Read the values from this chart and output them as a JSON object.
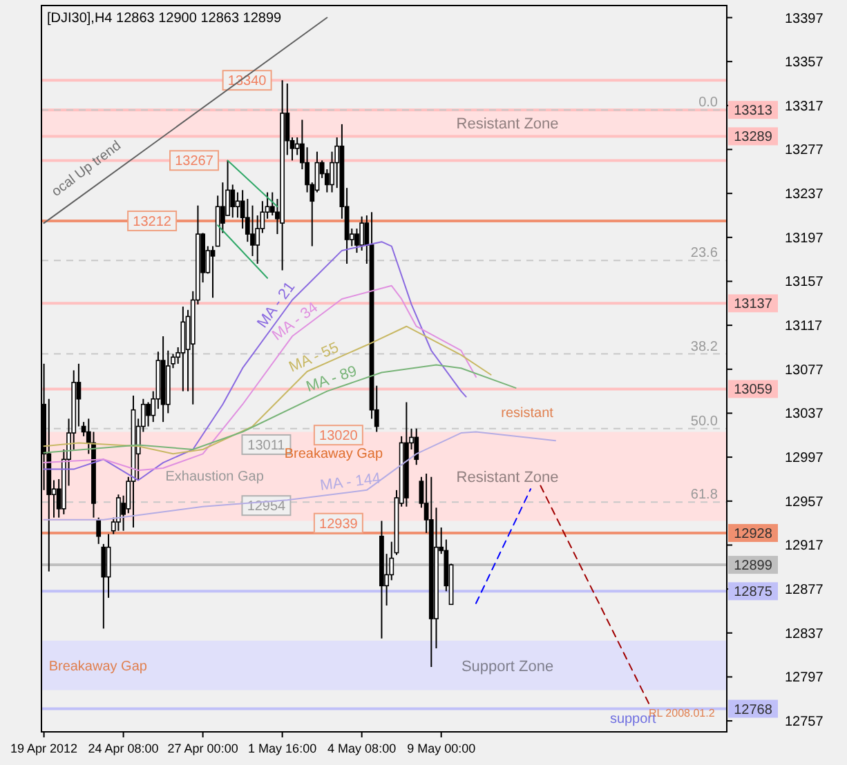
{
  "chart_data": {
    "type": "candlestick",
    "title": "[DJI30],H4  12863 12900 12863 12899",
    "color": "#000000",
    "categories": [
      "19 Apr 2012",
      null,
      null,
      null,
      null,
      null,
      null,
      null,
      null,
      null,
      null,
      null,
      null,
      null,
      null,
      null,
      "24 Apr 08:00",
      null,
      null,
      null,
      null,
      null,
      null,
      null,
      null,
      null,
      null,
      null,
      null,
      null,
      null,
      null,
      "27 Apr 00:00",
      null,
      null,
      null,
      null,
      null,
      null,
      null,
      null,
      null,
      null,
      null,
      null,
      null,
      null,
      null,
      "1 May 16:00",
      null,
      null,
      null,
      null,
      null,
      null,
      null,
      null,
      null,
      null,
      null,
      null,
      null,
      null,
      null,
      "4 May 08:00",
      null,
      null,
      null,
      null,
      null,
      null,
      null,
      null,
      null,
      null,
      null,
      null,
      null,
      null,
      null,
      "9 May 00:00",
      null,
      null,
      null,
      null,
      null,
      null,
      null,
      null,
      null,
      null,
      null,
      null,
      null,
      null,
      null,
      null,
      null,
      null,
      null,
      null,
      null,
      null,
      null,
      null,
      null,
      null,
      null,
      null,
      null,
      null,
      null,
      null,
      null,
      null,
      null,
      null,
      null,
      null,
      null,
      null,
      null,
      null,
      null,
      null,
      null,
      null,
      null,
      null,
      null,
      null,
      null,
      null,
      null,
      null,
      null,
      null,
      null
    ],
    "ohlc": [
      [
        13045,
        13082,
        12967,
        13000
      ],
      [
        13000,
        13050,
        12893,
        12963
      ],
      [
        12963,
        12976,
        12942,
        12968
      ],
      [
        12968,
        12977,
        12942,
        12950
      ],
      [
        12950,
        13004,
        12945,
        12995
      ],
      [
        12995,
        13032,
        12971,
        13019
      ],
      [
        13019,
        13076,
        13004,
        13065
      ],
      [
        13065,
        13082,
        13025,
        13050
      ],
      [
        13025,
        13029,
        13016,
        13020
      ],
      [
        13020,
        13032,
        13000,
        13010
      ],
      [
        13010,
        13020,
        12942,
        12955
      ],
      [
        12940,
        12942,
        12918,
        12925
      ],
      [
        12915,
        12918,
        12841,
        12888
      ],
      [
        12888,
        12927,
        12869,
        12915
      ],
      [
        12930,
        12942,
        12927,
        12938
      ],
      [
        12938,
        12963,
        12930,
        12960
      ],
      [
        12955,
        12962,
        12930,
        12945
      ],
      [
        12950,
        12979,
        12946,
        12975
      ],
      [
        12975,
        13053,
        12933,
        13040
      ],
      [
        13000,
        13032,
        12976,
        13025
      ],
      [
        13025,
        13050,
        13020,
        13045
      ],
      [
        13045,
        13047,
        13025,
        13035
      ],
      [
        13035,
        13057,
        13029,
        13050
      ],
      [
        13050,
        13093,
        13041,
        13085
      ],
      [
        13085,
        13107,
        13029,
        13045
      ],
      [
        13045,
        13094,
        13037,
        13080
      ],
      [
        13082,
        13091,
        13078,
        13088
      ],
      [
        13088,
        13097,
        13082,
        13092
      ],
      [
        13092,
        13134,
        13057,
        13120
      ],
      [
        13095,
        13131,
        13057,
        13125
      ],
      [
        13100,
        13148,
        13045,
        13140
      ],
      [
        13140,
        13226,
        13136,
        13200
      ],
      [
        13200,
        13201,
        13156,
        13165
      ],
      [
        13165,
        13189,
        13164,
        13185
      ],
      [
        13185,
        13189,
        13142,
        13180
      ],
      [
        13189,
        13235,
        13189,
        13225
      ],
      [
        13225,
        13247,
        13201,
        13210
      ],
      [
        13217,
        13267,
        13217,
        13240
      ],
      [
        13240,
        13245,
        13215,
        13225
      ],
      [
        13225,
        13238,
        13215,
        13230
      ],
      [
        13230,
        13240,
        13205,
        13215
      ],
      [
        13215,
        13232,
        13193,
        13200
      ],
      [
        13200,
        13226,
        13180,
        13190
      ],
      [
        13190,
        13217,
        13173,
        13205
      ],
      [
        13205,
        13230,
        13201,
        13220
      ],
      [
        13220,
        13238,
        13214,
        13225
      ],
      [
        13225,
        13238,
        13217,
        13220
      ],
      [
        13220,
        13232,
        13200,
        13214
      ],
      [
        13210,
        13340,
        13167,
        13310
      ],
      [
        13310,
        13337,
        13272,
        13285
      ],
      [
        13285,
        13288,
        13267,
        13278
      ],
      [
        13278,
        13288,
        13272,
        13282
      ],
      [
        13282,
        13304,
        13259,
        13265
      ],
      [
        13265,
        13279,
        13238,
        13245
      ],
      [
        13245,
        13247,
        13189,
        13230
      ],
      [
        13240,
        13275,
        13238,
        13265
      ],
      [
        13265,
        13267,
        13251,
        13255
      ],
      [
        13255,
        13259,
        13238,
        13245
      ],
      [
        13245,
        13275,
        13238,
        13265
      ],
      [
        13265,
        13288,
        13242,
        13280
      ],
      [
        13280,
        13300,
        13214,
        13225
      ],
      [
        13225,
        13242,
        13173,
        13195
      ],
      [
        13195,
        13205,
        13189,
        13200
      ],
      [
        13200,
        13205,
        13183,
        13190
      ],
      [
        13190,
        13216,
        13185,
        13210
      ],
      [
        13210,
        13217,
        13173,
        13190
      ],
      [
        13190,
        13220,
        13032,
        13040
      ],
      [
        13040,
        13062,
        13020,
        13025
      ],
      [
        12925,
        12939,
        12832,
        12880
      ],
      [
        12880,
        12909,
        12862,
        12890
      ],
      [
        12890,
        12920,
        12885,
        12905
      ],
      [
        12910,
        12967,
        12908,
        12960
      ],
      [
        12955,
        13016,
        12952,
        13010
      ],
      [
        13010,
        13047,
        12952,
        12960
      ],
      [
        13010,
        13023,
        13004,
        13015
      ],
      [
        13015,
        13023,
        12990,
        12995
      ],
      [
        12975,
        12979,
        12951,
        12955
      ],
      [
        12955,
        12982,
        12928,
        12940
      ],
      [
        12940,
        12979,
        12806,
        12850
      ],
      [
        12850,
        12951,
        12823,
        12915
      ],
      [
        12915,
        12933,
        12909,
        12912
      ],
      [
        12912,
        12922,
        12875,
        12880
      ],
      [
        12863,
        12900,
        12863,
        12899
      ],
      null,
      null,
      null,
      null,
      null,
      null,
      null,
      null,
      null,
      null,
      null,
      null,
      null,
      null,
      null,
      null,
      null,
      null,
      null,
      null,
      null,
      null,
      null,
      null,
      null,
      null,
      null,
      null,
      null,
      null,
      null,
      null,
      null,
      null,
      null,
      null,
      null,
      null,
      null,
      null,
      null,
      null,
      null,
      null,
      null,
      null,
      null,
      null,
      null,
      null,
      null,
      null,
      null,
      null,
      null
    ],
    "series": [
      {
        "type": "line",
        "name": "MA - 21",
        "color": "#8a6ae0",
        "values": [
          12986,
          null,
          null,
          null,
          null,
          null,
          12986,
          null,
          null,
          null,
          null,
          null,
          12995,
          null,
          null,
          null,
          null,
          null,
          null,
          12976,
          null,
          null,
          null,
          null,
          12992,
          null,
          null,
          null,
          null,
          null,
          13004,
          null,
          null,
          null,
          null,
          null,
          13045,
          null,
          null,
          null,
          13078,
          null,
          null,
          null,
          null,
          null,
          null,
          null,
          null,
          null,
          13140,
          null,
          null,
          null,
          null,
          null,
          null,
          null,
          null,
          null,
          13185,
          null,
          null,
          null,
          null,
          null,
          null,
          null,
          13193,
          null,
          13189,
          null,
          null,
          null,
          13136,
          null,
          null,
          null,
          13094,
          null,
          null,
          null,
          null,
          null,
          13057,
          13052,
          null,
          null,
          null,
          null,
          null,
          null,
          null,
          null,
          null,
          null,
          null,
          null,
          null,
          null,
          null,
          null,
          null,
          null,
          null,
          null,
          null,
          null,
          null,
          null,
          null,
          null,
          null,
          null,
          null,
          null,
          null,
          null,
          null,
          null,
          null,
          null,
          null,
          null,
          null,
          null,
          null,
          null,
          null,
          null,
          null,
          null,
          null,
          null,
          null,
          null,
          null,
          null
        ]
      },
      {
        "type": "line",
        "name": "MA - 34",
        "color": "#e090e0",
        "values": [
          12992,
          null,
          null,
          null,
          null,
          null,
          null,
          null,
          null,
          null,
          null,
          null,
          12995,
          null,
          null,
          null,
          null,
          null,
          null,
          12985,
          null,
          null,
          null,
          null,
          12987,
          null,
          null,
          null,
          null,
          null,
          null,
          null,
          13000,
          null,
          null,
          null,
          null,
          null,
          null,
          null,
          13045,
          null,
          null,
          null,
          null,
          null,
          null,
          null,
          null,
          null,
          13107,
          null,
          null,
          null,
          null,
          null,
          null,
          null,
          null,
          null,
          13141,
          null,
          null,
          null,
          null,
          null,
          null,
          null,
          null,
          null,
          13153,
          null,
          13141,
          null,
          null,
          13116,
          null,
          null,
          null,
          null,
          null,
          null,
          null,
          null,
          13094,
          null,
          null,
          13070,
          null,
          null,
          null,
          null,
          null,
          null,
          null,
          null,
          null,
          null,
          null,
          null,
          null,
          null,
          null,
          null,
          null,
          null,
          null,
          null,
          null,
          null,
          null,
          null,
          null,
          null,
          null,
          null,
          null,
          null,
          null,
          null,
          null,
          null,
          null,
          null,
          null,
          null,
          null,
          null,
          null,
          null,
          null,
          null,
          null,
          null,
          null,
          null,
          null,
          null
        ]
      },
      {
        "type": "line",
        "name": "MA - 55",
        "color": "#c8b864",
        "values": [
          13007,
          null,
          null,
          null,
          null,
          null,
          null,
          13010,
          null,
          null,
          null,
          null,
          null,
          null,
          null,
          null,
          null,
          null,
          null,
          13007,
          null,
          null,
          null,
          null,
          null,
          null,
          13000,
          null,
          null,
          null,
          null,
          null,
          13004,
          null,
          null,
          null,
          null,
          null,
          null,
          null,
          null,
          null,
          13025,
          null,
          null,
          null,
          null,
          null,
          null,
          null,
          null,
          null,
          null,
          13075,
          null,
          null,
          null,
          null,
          null,
          null,
          null,
          null,
          null,
          null,
          null,
          13099,
          null,
          null,
          null,
          null,
          null,
          null,
          null,
          13116,
          null,
          null,
          null,
          null,
          null,
          null,
          null,
          null,
          null,
          null,
          13090,
          null,
          null,
          null,
          null,
          null,
          13072,
          null,
          null,
          null,
          null,
          null,
          null,
          null,
          null,
          null,
          null,
          null,
          null,
          null,
          null,
          null,
          null,
          null,
          null,
          null,
          null,
          null,
          null,
          null,
          null,
          null,
          null,
          null,
          null,
          null,
          null,
          null,
          null,
          null,
          null,
          null,
          null,
          null,
          null,
          null,
          null,
          null,
          null,
          null,
          null,
          null,
          null,
          null
        ]
      },
      {
        "type": "line",
        "name": "MA - 89",
        "color": "#78b478",
        "values": [
          13001,
          null,
          null,
          null,
          null,
          null,
          null,
          null,
          null,
          null,
          null,
          null,
          null,
          null,
          null,
          null,
          null,
          null,
          null,
          13008,
          null,
          null,
          null,
          null,
          null,
          null,
          null,
          null,
          null,
          null,
          13004,
          null,
          null,
          null,
          null,
          null,
          null,
          null,
          null,
          null,
          13020,
          null,
          null,
          null,
          null,
          null,
          null,
          null,
          null,
          null,
          null,
          null,
          null,
          null,
          null,
          null,
          null,
          13057,
          null,
          null,
          null,
          null,
          null,
          null,
          null,
          null,
          null,
          null,
          13074,
          null,
          null,
          null,
          null,
          null,
          null,
          null,
          null,
          null,
          null,
          13081,
          null,
          null,
          null,
          null,
          13078,
          null,
          null,
          null,
          null,
          null,
          null,
          null,
          null,
          null,
          null,
          13060,
          null,
          null,
          null,
          null,
          null,
          null,
          null,
          null,
          null,
          null,
          null,
          null,
          null,
          null,
          null,
          null,
          null,
          null,
          null,
          null,
          null,
          null,
          null,
          null,
          null,
          null,
          null,
          null,
          null,
          null,
          null,
          null,
          null,
          null,
          null,
          null,
          null,
          null,
          null,
          null,
          null,
          null
        ]
      },
      {
        "type": "line",
        "name": "MA - 144",
        "color": "#b4ace4",
        "values": [
          12940,
          null,
          null,
          null,
          null,
          null,
          null,
          null,
          null,
          null,
          null,
          null,
          12940,
          null,
          null,
          null,
          null,
          null,
          null,
          null,
          null,
          null,
          null,
          null,
          null,
          null,
          null,
          null,
          null,
          null,
          null,
          null,
          12952,
          null,
          null,
          null,
          null,
          null,
          null,
          null,
          null,
          null,
          null,
          null,
          null,
          null,
          null,
          null,
          null,
          12958,
          null,
          null,
          null,
          null,
          null,
          null,
          null,
          null,
          null,
          null,
          null,
          null,
          null,
          null,
          null,
          12967,
          null,
          null,
          null,
          null,
          null,
          null,
          null,
          null,
          null,
          13000,
          null,
          null,
          null,
          null,
          null,
          null,
          null,
          null,
          13019,
          null,
          null,
          13020,
          null,
          null,
          null,
          null,
          null,
          null,
          null,
          null,
          null,
          null,
          null,
          null,
          null,
          null,
          null,
          13012,
          null,
          null,
          null,
          null,
          null,
          null,
          null,
          null,
          null,
          null,
          null,
          null,
          null,
          null,
          null,
          null,
          null,
          null,
          null,
          null,
          null,
          null,
          null,
          null,
          null,
          null,
          null,
          null,
          null,
          null,
          null,
          null,
          null,
          null
        ]
      },
      {
        "type": "line",
        "color": "#30a868",
        "values": [
          null,
          null,
          null,
          null,
          null,
          null,
          null,
          null,
          null,
          null,
          null,
          null,
          null,
          null,
          null,
          null,
          null,
          null,
          null,
          null,
          null,
          null,
          null,
          null,
          null,
          null,
          null,
          null,
          null,
          null,
          null,
          null,
          null,
          null,
          null,
          null,
          null,
          13267,
          null,
          null,
          null,
          null,
          null,
          null,
          null,
          null,
          null,
          13225,
          null,
          null,
          null,
          null,
          null,
          null,
          null,
          null,
          null,
          null,
          null,
          null,
          null,
          null,
          null,
          null,
          null,
          null,
          null,
          null,
          null,
          null,
          null,
          null,
          null,
          null,
          null,
          null,
          null,
          null,
          null,
          null,
          null,
          null,
          null,
          null,
          null,
          null,
          null,
          null,
          null,
          null,
          null,
          null,
          null,
          null,
          null,
          null,
          null,
          null,
          null,
          null,
          null,
          null,
          null,
          null,
          null,
          null,
          null,
          null,
          null,
          null,
          null,
          null,
          null,
          null,
          null,
          null,
          null,
          null,
          null,
          null,
          null,
          null,
          null,
          null,
          null,
          null,
          null,
          null,
          null,
          null,
          null,
          null,
          null,
          null,
          null,
          null,
          null,
          null
        ]
      },
      {
        "type": "line",
        "color": "#30a868",
        "values": [
          null,
          null,
          null,
          null,
          null,
          null,
          null,
          null,
          null,
          null,
          null,
          null,
          null,
          null,
          null,
          null,
          null,
          null,
          null,
          null,
          null,
          null,
          null,
          null,
          null,
          null,
          null,
          null,
          null,
          null,
          null,
          null,
          null,
          null,
          null,
          13208,
          null,
          null,
          null,
          null,
          null,
          null,
          null,
          null,
          null,
          13160,
          null,
          null,
          null,
          null,
          null,
          null,
          null,
          null,
          null,
          null,
          null,
          null,
          null,
          null,
          null,
          null,
          null,
          null,
          null,
          null,
          null,
          null,
          null,
          null,
          null,
          null,
          null,
          null,
          null,
          null,
          null,
          null,
          null,
          null,
          null,
          null,
          null,
          null,
          null,
          null,
          null,
          null,
          null,
          null,
          null,
          null,
          null,
          null,
          null,
          null,
          null,
          null,
          null,
          null,
          null,
          null,
          null,
          null,
          null,
          null,
          null,
          null,
          null,
          null,
          null,
          null,
          null,
          null,
          null,
          null,
          null,
          null,
          null,
          null,
          null,
          null,
          null,
          null,
          null,
          null,
          null,
          null,
          null,
          null,
          null,
          null,
          null,
          null,
          null,
          null,
          null,
          null
        ]
      },
      {
        "type": "line",
        "color": "#606060",
        "values": [
          13210,
          null,
          null,
          null,
          null,
          null,
          null,
          null,
          null,
          null,
          null,
          null,
          null,
          null,
          null,
          null,
          null,
          null,
          null,
          null,
          null,
          null,
          null,
          null,
          null,
          null,
          null,
          null,
          null,
          null,
          null,
          null,
          null,
          null,
          null,
          null,
          null,
          null,
          null,
          null,
          null,
          null,
          null,
          null,
          null,
          null,
          null,
          null,
          null,
          null,
          null,
          null,
          null,
          null,
          null,
          null,
          null,
          13397,
          null,
          null,
          null,
          null,
          null,
          null,
          null,
          null,
          null,
          null,
          null,
          null,
          null,
          null,
          null,
          null,
          null,
          null,
          null,
          null,
          null,
          null,
          null,
          null,
          null,
          null,
          null,
          null,
          null,
          null,
          null,
          null,
          null,
          null,
          null,
          null,
          null,
          null,
          null,
          null,
          null,
          null,
          null,
          null,
          null,
          null,
          null,
          null,
          null,
          null,
          null,
          null,
          null,
          null,
          null,
          null,
          null,
          null,
          null,
          null,
          null,
          null,
          null,
          null,
          null,
          null,
          null,
          null,
          null,
          null,
          null,
          null,
          null,
          null,
          null,
          null,
          null,
          null,
          null,
          null
        ]
      },
      {
        "type": "line",
        "color": "#0000ff",
        "line_style": "dashed",
        "values": [
          null,
          null,
          null,
          null,
          null,
          null,
          null,
          null,
          null,
          null,
          null,
          null,
          null,
          null,
          null,
          null,
          null,
          null,
          null,
          null,
          null,
          null,
          null,
          null,
          null,
          null,
          null,
          null,
          null,
          null,
          null,
          null,
          null,
          null,
          null,
          null,
          null,
          null,
          null,
          null,
          null,
          null,
          null,
          null,
          null,
          null,
          null,
          null,
          null,
          null,
          null,
          null,
          null,
          null,
          null,
          null,
          null,
          null,
          null,
          null,
          null,
          null,
          null,
          null,
          null,
          null,
          null,
          null,
          null,
          null,
          null,
          null,
          null,
          null,
          null,
          null,
          null,
          null,
          null,
          null,
          null,
          null,
          null,
          null,
          null,
          null,
          null,
          12864,
          null,
          null,
          null,
          null,
          null,
          null,
          null,
          null,
          null,
          null,
          12968,
          null,
          null,
          null,
          null,
          null,
          null,
          null,
          null,
          null,
          null,
          null,
          null,
          null,
          null,
          null,
          null,
          null,
          null,
          null,
          null,
          null,
          null,
          null,
          null,
          null,
          null,
          null,
          null,
          null,
          null,
          null,
          null,
          null,
          null,
          null,
          null,
          null,
          null,
          null
        ]
      },
      {
        "type": "line",
        "color": "#a00000",
        "line_style": "dashed",
        "values": [
          null,
          null,
          null,
          null,
          null,
          null,
          null,
          null,
          null,
          null,
          null,
          null,
          null,
          null,
          null,
          null,
          null,
          null,
          null,
          null,
          null,
          null,
          null,
          null,
          null,
          null,
          null,
          null,
          null,
          null,
          null,
          null,
          null,
          null,
          null,
          null,
          null,
          null,
          null,
          null,
          null,
          null,
          null,
          null,
          null,
          null,
          null,
          null,
          null,
          null,
          null,
          null,
          null,
          null,
          null,
          null,
          null,
          null,
          null,
          null,
          null,
          null,
          null,
          null,
          null,
          null,
          null,
          null,
          null,
          null,
          null,
          null,
          null,
          null,
          null,
          null,
          null,
          null,
          null,
          null,
          null,
          null,
          null,
          null,
          null,
          null,
          null,
          null,
          null,
          null,
          null,
          null,
          null,
          null,
          null,
          null,
          null,
          null,
          null,
          null,
          12971,
          null,
          null,
          null,
          null,
          null,
          null,
          null,
          null,
          null,
          null,
          null,
          null,
          null,
          null,
          null,
          null,
          null,
          null,
          null,
          null,
          null,
          12771,
          null,
          null,
          null,
          null,
          null,
          null,
          null,
          null,
          null,
          null,
          null,
          null,
          null,
          null,
          null
        ]
      }
    ],
    "ylim": [
      12747,
      13408
    ],
    "yticks": [
      12757,
      12797,
      12837,
      12877,
      12917,
      12957,
      12997,
      13037,
      13077,
      13117,
      13157,
      13197,
      13237,
      13277,
      13317,
      13357,
      13397
    ],
    "bands": [
      {
        "axis": "y",
        "from": 13289,
        "to": 13313,
        "label": "Resistant Zone",
        "color": "#ffe0e0"
      },
      {
        "axis": "y",
        "from": 12939,
        "to": 13020,
        "label": "Resistant Zone",
        "color": "#ffe0e0"
      },
      {
        "axis": "y",
        "from": 12785,
        "to": 12830,
        "label": "Support Zone",
        "color": "#e0e0fa"
      }
    ],
    "ref_lines": [
      {
        "axis": "y",
        "value": 13340,
        "color": "#ffc0c0"
      },
      {
        "axis": "y",
        "value": 13313,
        "label": "13313",
        "color": "#ffc0c0"
      },
      {
        "axis": "y",
        "value": 13289,
        "label": "13289",
        "color": "#ffc0c0"
      },
      {
        "axis": "y",
        "value": 13267,
        "color": "#ffc0c0"
      },
      {
        "axis": "y",
        "value": 13212,
        "color": "#f09070"
      },
      {
        "axis": "y",
        "value": 13137,
        "label": "13137",
        "color": "#ffc0c0"
      },
      {
        "axis": "y",
        "value": 13059,
        "label": "13059",
        "color": "#ffc0c0"
      },
      {
        "axis": "y",
        "value": 12928,
        "label": "12928",
        "color": "#f09070"
      },
      {
        "axis": "y",
        "value": 12899,
        "label": "12899",
        "color": "#c0c0c0"
      },
      {
        "axis": "y",
        "value": 12875,
        "label": "12875",
        "color": "#c0c0f8"
      },
      {
        "axis": "y",
        "value": 12768,
        "label": "12768",
        "color": "#c0c0f8"
      },
      {
        "axis": "y",
        "value": 13313,
        "color": "#c8c8c8",
        "line_style": "dashed"
      },
      {
        "axis": "y",
        "value": 13176,
        "color": "#c8c8c8",
        "line_style": "dashed"
      },
      {
        "axis": "y",
        "value": 13091,
        "color": "#c8c8c8",
        "line_style": "dashed"
      },
      {
        "axis": "y",
        "value": 13023,
        "color": "#c8c8c8",
        "line_style": "dashed"
      },
      {
        "axis": "y",
        "value": 12956,
        "color": "#c8c8c8",
        "line_style": "dashed"
      }
    ],
    "annotations": [
      {
        "text": "13340",
        "y": 13340
      },
      {
        "text": "13267",
        "y": 13267
      },
      {
        "text": "13212",
        "y": 13212
      },
      "13011",
      "12954",
      "13020",
      "12939",
      "Exhaustion Gap",
      "Breakaway Gap",
      "Breakaway Gap",
      "resistant",
      "support",
      "RL 2008.01.2",
      "ocal Up trend",
      {
        "text": "0.0",
        "y": 13313
      },
      {
        "text": "23.6",
        "y": 13176
      },
      {
        "text": "38.2",
        "y": 13091
      },
      {
        "text": "50.0",
        "y": 13023
      },
      {
        "text": "61.8",
        "y": 12956
      }
    ]
  }
}
